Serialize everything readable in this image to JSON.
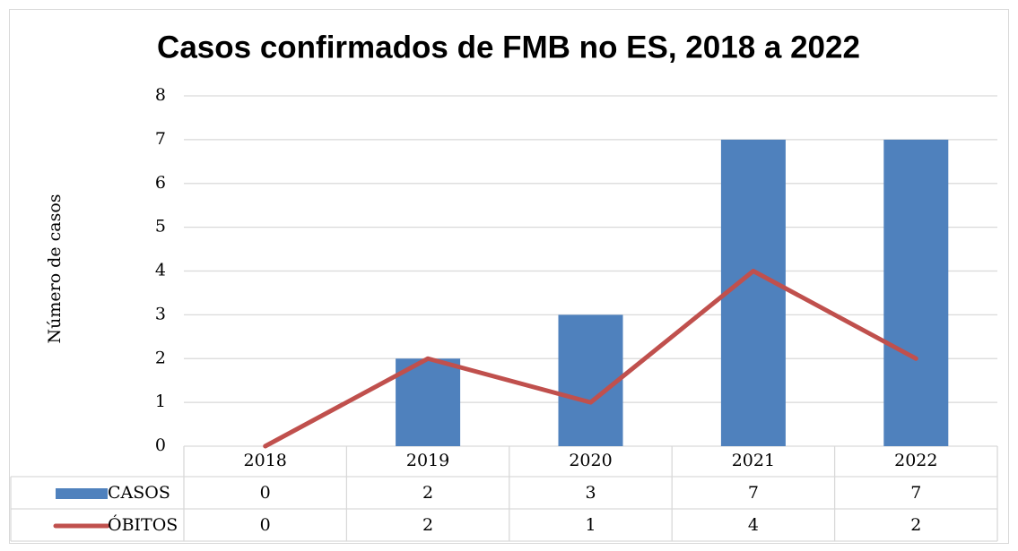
{
  "chart_data": {
    "type": "bar_line",
    "title": "Casos confirmados de FMB no ES, 2018 a 2022",
    "y_label": "Número de casos",
    "categories": [
      "2018",
      "2019",
      "2020",
      "2021",
      "2022"
    ],
    "series": [
      {
        "name": "CASOS",
        "type": "bar",
        "color": "#4f81bd",
        "values": [
          0,
          2,
          3,
          7,
          7
        ]
      },
      {
        "name": "ÓBITOS",
        "type": "line",
        "color": "#c0504d",
        "values": [
          0,
          2,
          1,
          4,
          2
        ]
      }
    ],
    "ylim": [
      0,
      8
    ],
    "yticks": [
      0,
      1,
      2,
      3,
      4,
      5,
      6,
      7,
      8
    ],
    "grid": true,
    "data_table": true
  }
}
